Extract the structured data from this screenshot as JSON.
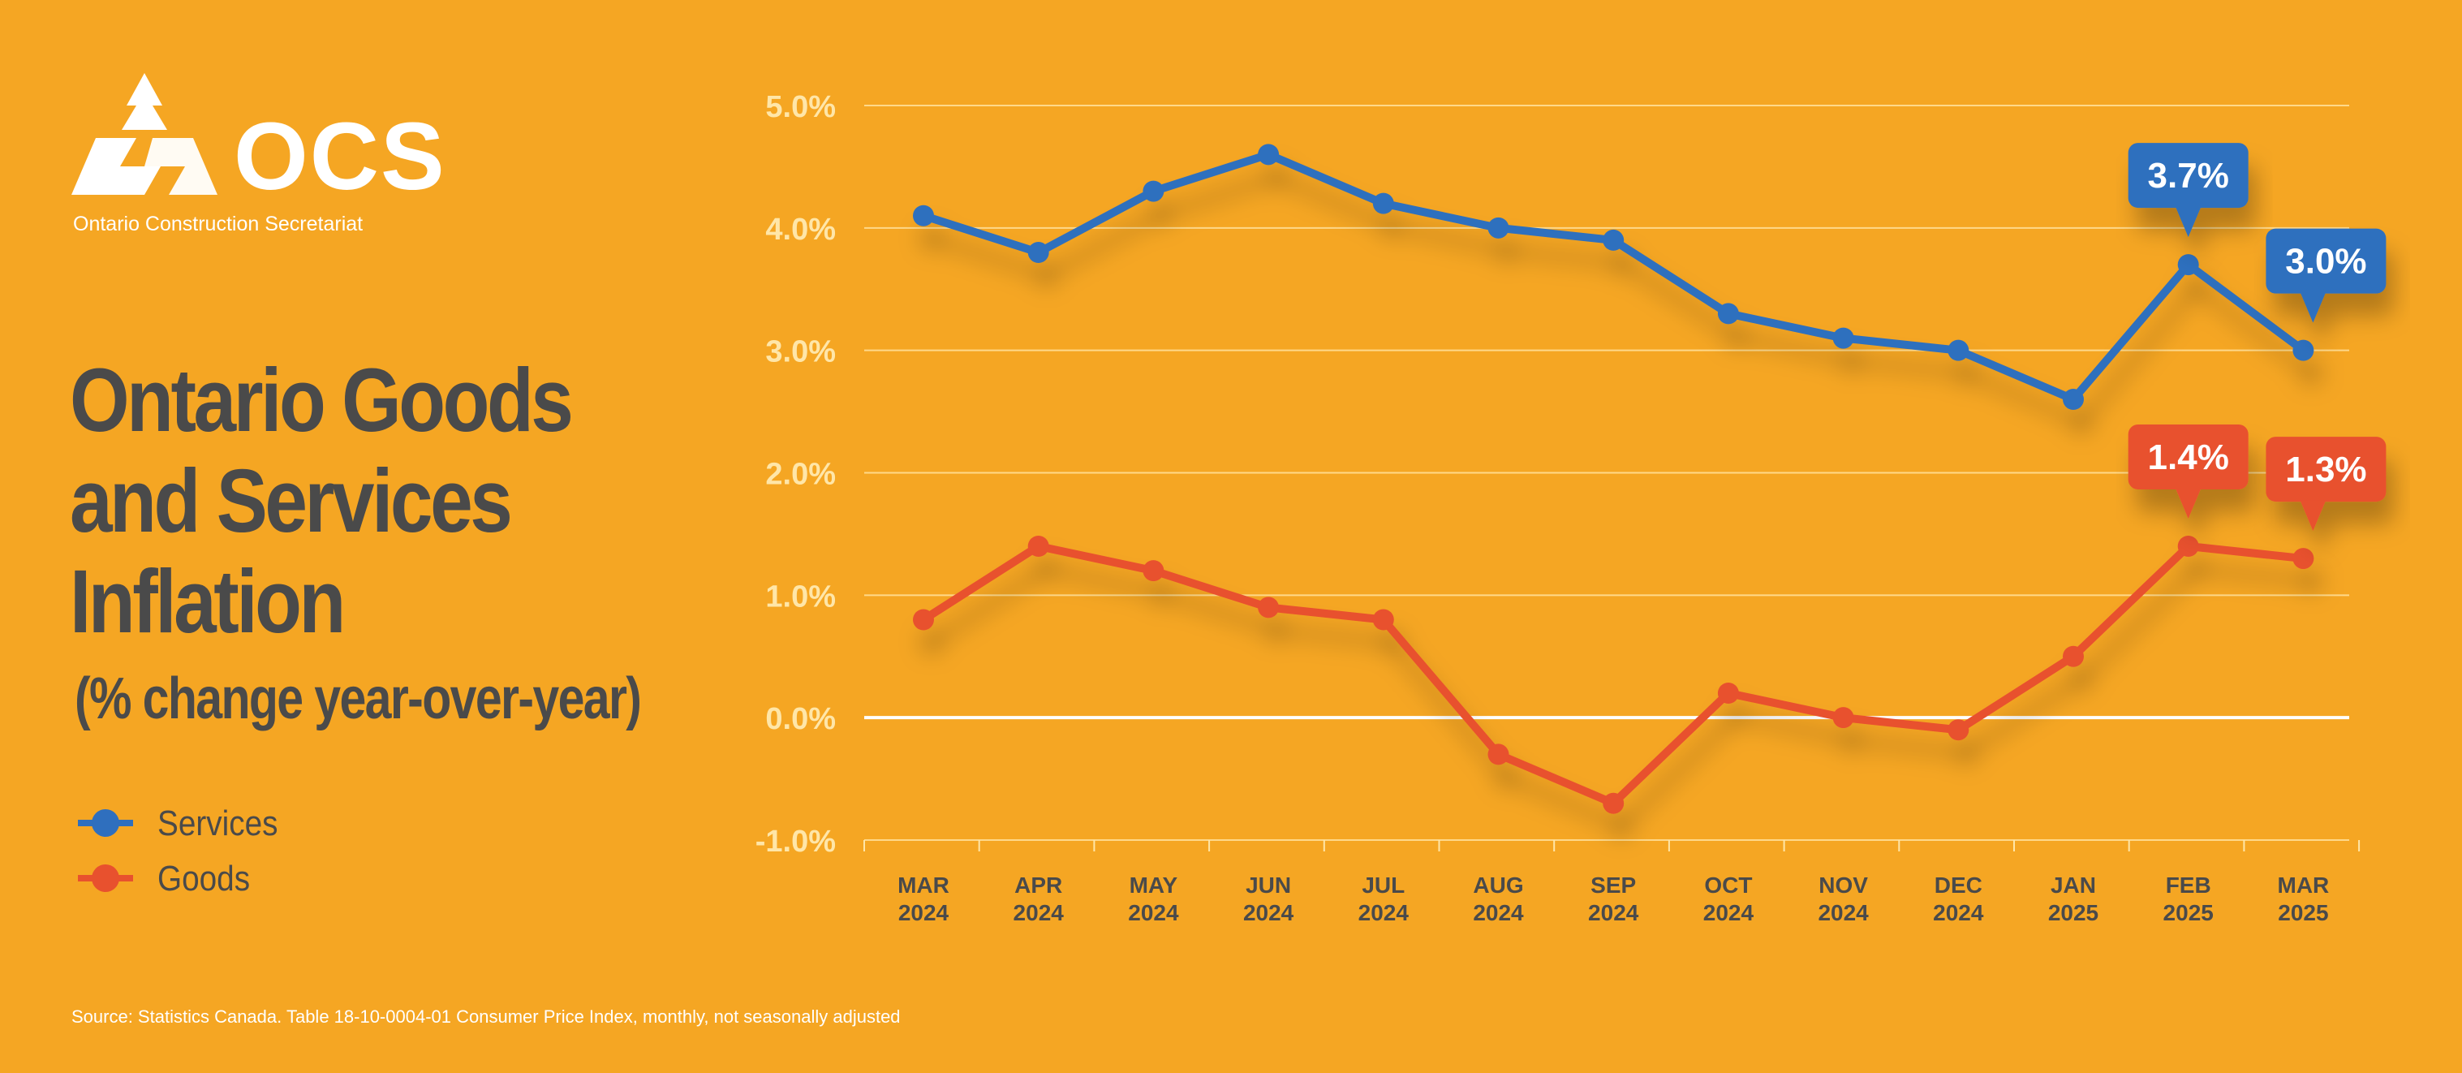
{
  "logo": {
    "name": "OCS",
    "subtitle": "Ontario Construction Secretariat"
  },
  "title_lines": [
    "Ontario Goods",
    "and Services",
    "Inflation"
  ],
  "subtitle": "(% change year-over-year)",
  "legend": [
    {
      "label": "Services",
      "color": "#2F6FBE"
    },
    {
      "label": "Goods",
      "color": "#E8512E"
    }
  ],
  "source": "Source: Statistics Canada. Table 18-10-0004-01  Consumer Price Index, monthly, not seasonally adjusted",
  "chart_data": {
    "type": "line",
    "title": "Ontario Goods and Services Inflation",
    "subtitle": "(% change year-over-year)",
    "xlabel": "",
    "ylabel": "",
    "categories": [
      [
        "MAR",
        "2024"
      ],
      [
        "APR",
        "2024"
      ],
      [
        "MAY",
        "2024"
      ],
      [
        "JUN",
        "2024"
      ],
      [
        "JUL",
        "2024"
      ],
      [
        "AUG",
        "2024"
      ],
      [
        "SEP",
        "2024"
      ],
      [
        "OCT",
        "2024"
      ],
      [
        "NOV",
        "2024"
      ],
      [
        "DEC",
        "2024"
      ],
      [
        "JAN",
        "2025"
      ],
      [
        "FEB",
        "2025"
      ],
      [
        "MAR",
        "2025"
      ]
    ],
    "y_ticks": [
      "5.0%",
      "4.0%",
      "3.0%",
      "2.0%",
      "1.0%",
      "0.0%",
      "-1.0%"
    ],
    "y_tick_values": [
      5,
      4,
      3,
      2,
      1,
      0,
      -1
    ],
    "ylim": [
      -1,
      5
    ],
    "grid": true,
    "legend_position": "left",
    "series": [
      {
        "name": "Services",
        "color": "#2F6FBE",
        "values": [
          4.1,
          3.8,
          4.3,
          4.6,
          4.2,
          4.0,
          3.9,
          3.3,
          3.1,
          3.0,
          2.6,
          3.7,
          3.0
        ],
        "callouts": [
          {
            "index": 11,
            "label": "3.7%"
          },
          {
            "index": 12,
            "label": "3.0%"
          }
        ]
      },
      {
        "name": "Goods",
        "color": "#E8512E",
        "values": [
          0.8,
          1.4,
          1.2,
          0.9,
          0.8,
          -0.3,
          -0.7,
          0.2,
          0.0,
          -0.1,
          0.5,
          1.4,
          1.3
        ],
        "callouts": [
          {
            "index": 11,
            "label": "1.4%"
          },
          {
            "index": 12,
            "label": "1.3%"
          }
        ]
      }
    ]
  }
}
